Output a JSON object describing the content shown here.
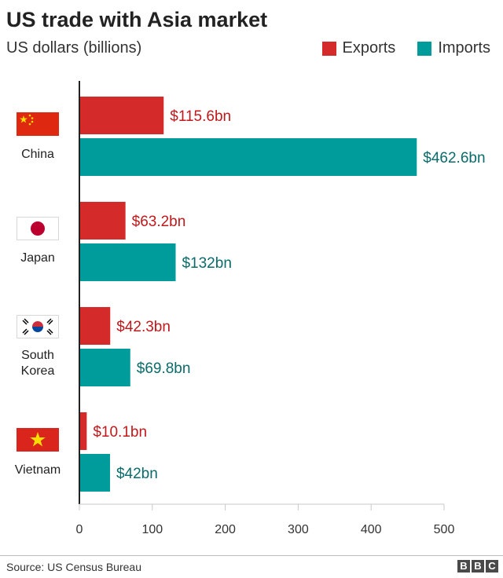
{
  "title": "US trade with Asia market",
  "subtitle": "US dollars (billions)",
  "legend": {
    "exports": "Exports",
    "imports": "Imports"
  },
  "colors": {
    "exports": "#d42a2a",
    "imports": "#009b9b",
    "exports_label": "#c0181b",
    "imports_label": "#0b6b6b"
  },
  "flags": [
    "china-flag-icon",
    "japan-flag-icon",
    "south-korea-flag-icon",
    "vietnam-flag-icon"
  ],
  "countries": [
    "China",
    "Japan",
    "South Korea",
    "Vietnam"
  ],
  "country_lines": [
    [
      "China"
    ],
    [
      "Japan"
    ],
    [
      "South",
      "Korea"
    ],
    [
      "Vietnam"
    ]
  ],
  "chart_data": {
    "type": "bar",
    "orientation": "horizontal",
    "categories": [
      "China",
      "Japan",
      "South Korea",
      "Vietnam"
    ],
    "series": [
      {
        "name": "Exports",
        "values": [
          115.6,
          63.2,
          42.3,
          10.1
        ],
        "labels": [
          "$115.6bn",
          "$63.2bn",
          "$42.3bn",
          "$10.1bn"
        ]
      },
      {
        "name": "Imports",
        "values": [
          462.6,
          132,
          69.8,
          42
        ],
        "labels": [
          "$462.6bn",
          "$132bn",
          "$69.8bn",
          "$42bn"
        ]
      }
    ],
    "xlim": [
      0,
      500
    ],
    "xticks": [
      0,
      100,
      200,
      300,
      400,
      500
    ],
    "title": "US trade with Asia market",
    "subtitle": "US dollars (billions)",
    "legend": "top-right"
  },
  "footer": {
    "source": "Source: US Census Bureau",
    "logo": [
      "B",
      "B",
      "C"
    ]
  }
}
